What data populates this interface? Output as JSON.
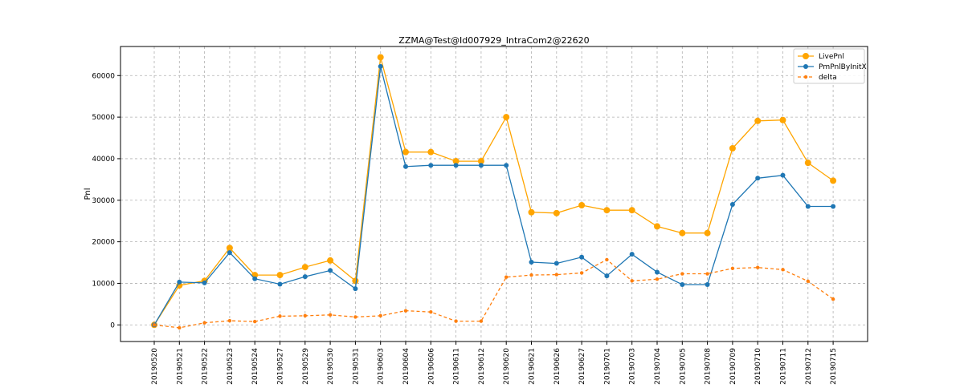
{
  "chart_data": {
    "type": "line",
    "title": "ZZMA@Test@Id007929_IntraCom2@22620",
    "xlabel": "",
    "ylabel": "Pnl",
    "ylim": [
      -4000,
      67000
    ],
    "yticks": [
      0,
      10000,
      20000,
      30000,
      40000,
      50000,
      60000
    ],
    "grid": true,
    "legend_position": "top-right",
    "categories": [
      "20190520",
      "20190521",
      "20190522",
      "20190523",
      "20190524",
      "20190527",
      "20190529",
      "20190530",
      "20190531",
      "20190603",
      "20190604",
      "20190606",
      "20190611",
      "20190612",
      "20190620",
      "20190621",
      "20190626",
      "20190627",
      "20190701",
      "20190703",
      "20190704",
      "20190705",
      "20190708",
      "20190709",
      "20190710",
      "20190711",
      "20190712",
      "20190715"
    ],
    "series": [
      {
        "name": "LivePnl",
        "color": "#ffa500",
        "style": "solid",
        "marker": "large-circle",
        "values": [
          0,
          9500,
          10600,
          18500,
          12000,
          12000,
          13900,
          15500,
          10600,
          64400,
          41600,
          41600,
          39400,
          39400,
          50000,
          27100,
          26900,
          28800,
          27600,
          27600,
          23700,
          22100,
          22100,
          42500,
          49100,
          49300,
          39000,
          34700
        ]
      },
      {
        "name": "PmPnlByInitX",
        "color": "#1f77b4",
        "style": "solid",
        "marker": "circle",
        "values": [
          0,
          10300,
          10100,
          17400,
          11100,
          9800,
          11600,
          13100,
          8700,
          62200,
          38100,
          38400,
          38400,
          38400,
          38400,
          15100,
          14800,
          16300,
          11800,
          17000,
          12700,
          9700,
          9700,
          29000,
          35300,
          36000,
          28500,
          28500
        ]
      },
      {
        "name": "delta",
        "color": "#ff7f0e",
        "style": "dashed",
        "marker": "small-circle",
        "values": [
          0,
          -700,
          500,
          1000,
          800,
          2100,
          2200,
          2400,
          1900,
          2200,
          3400,
          3100,
          900,
          900,
          11500,
          12000,
          12100,
          12500,
          15700,
          10600,
          11000,
          12300,
          12300,
          13600,
          13800,
          13300,
          10500,
          6200
        ]
      }
    ]
  }
}
